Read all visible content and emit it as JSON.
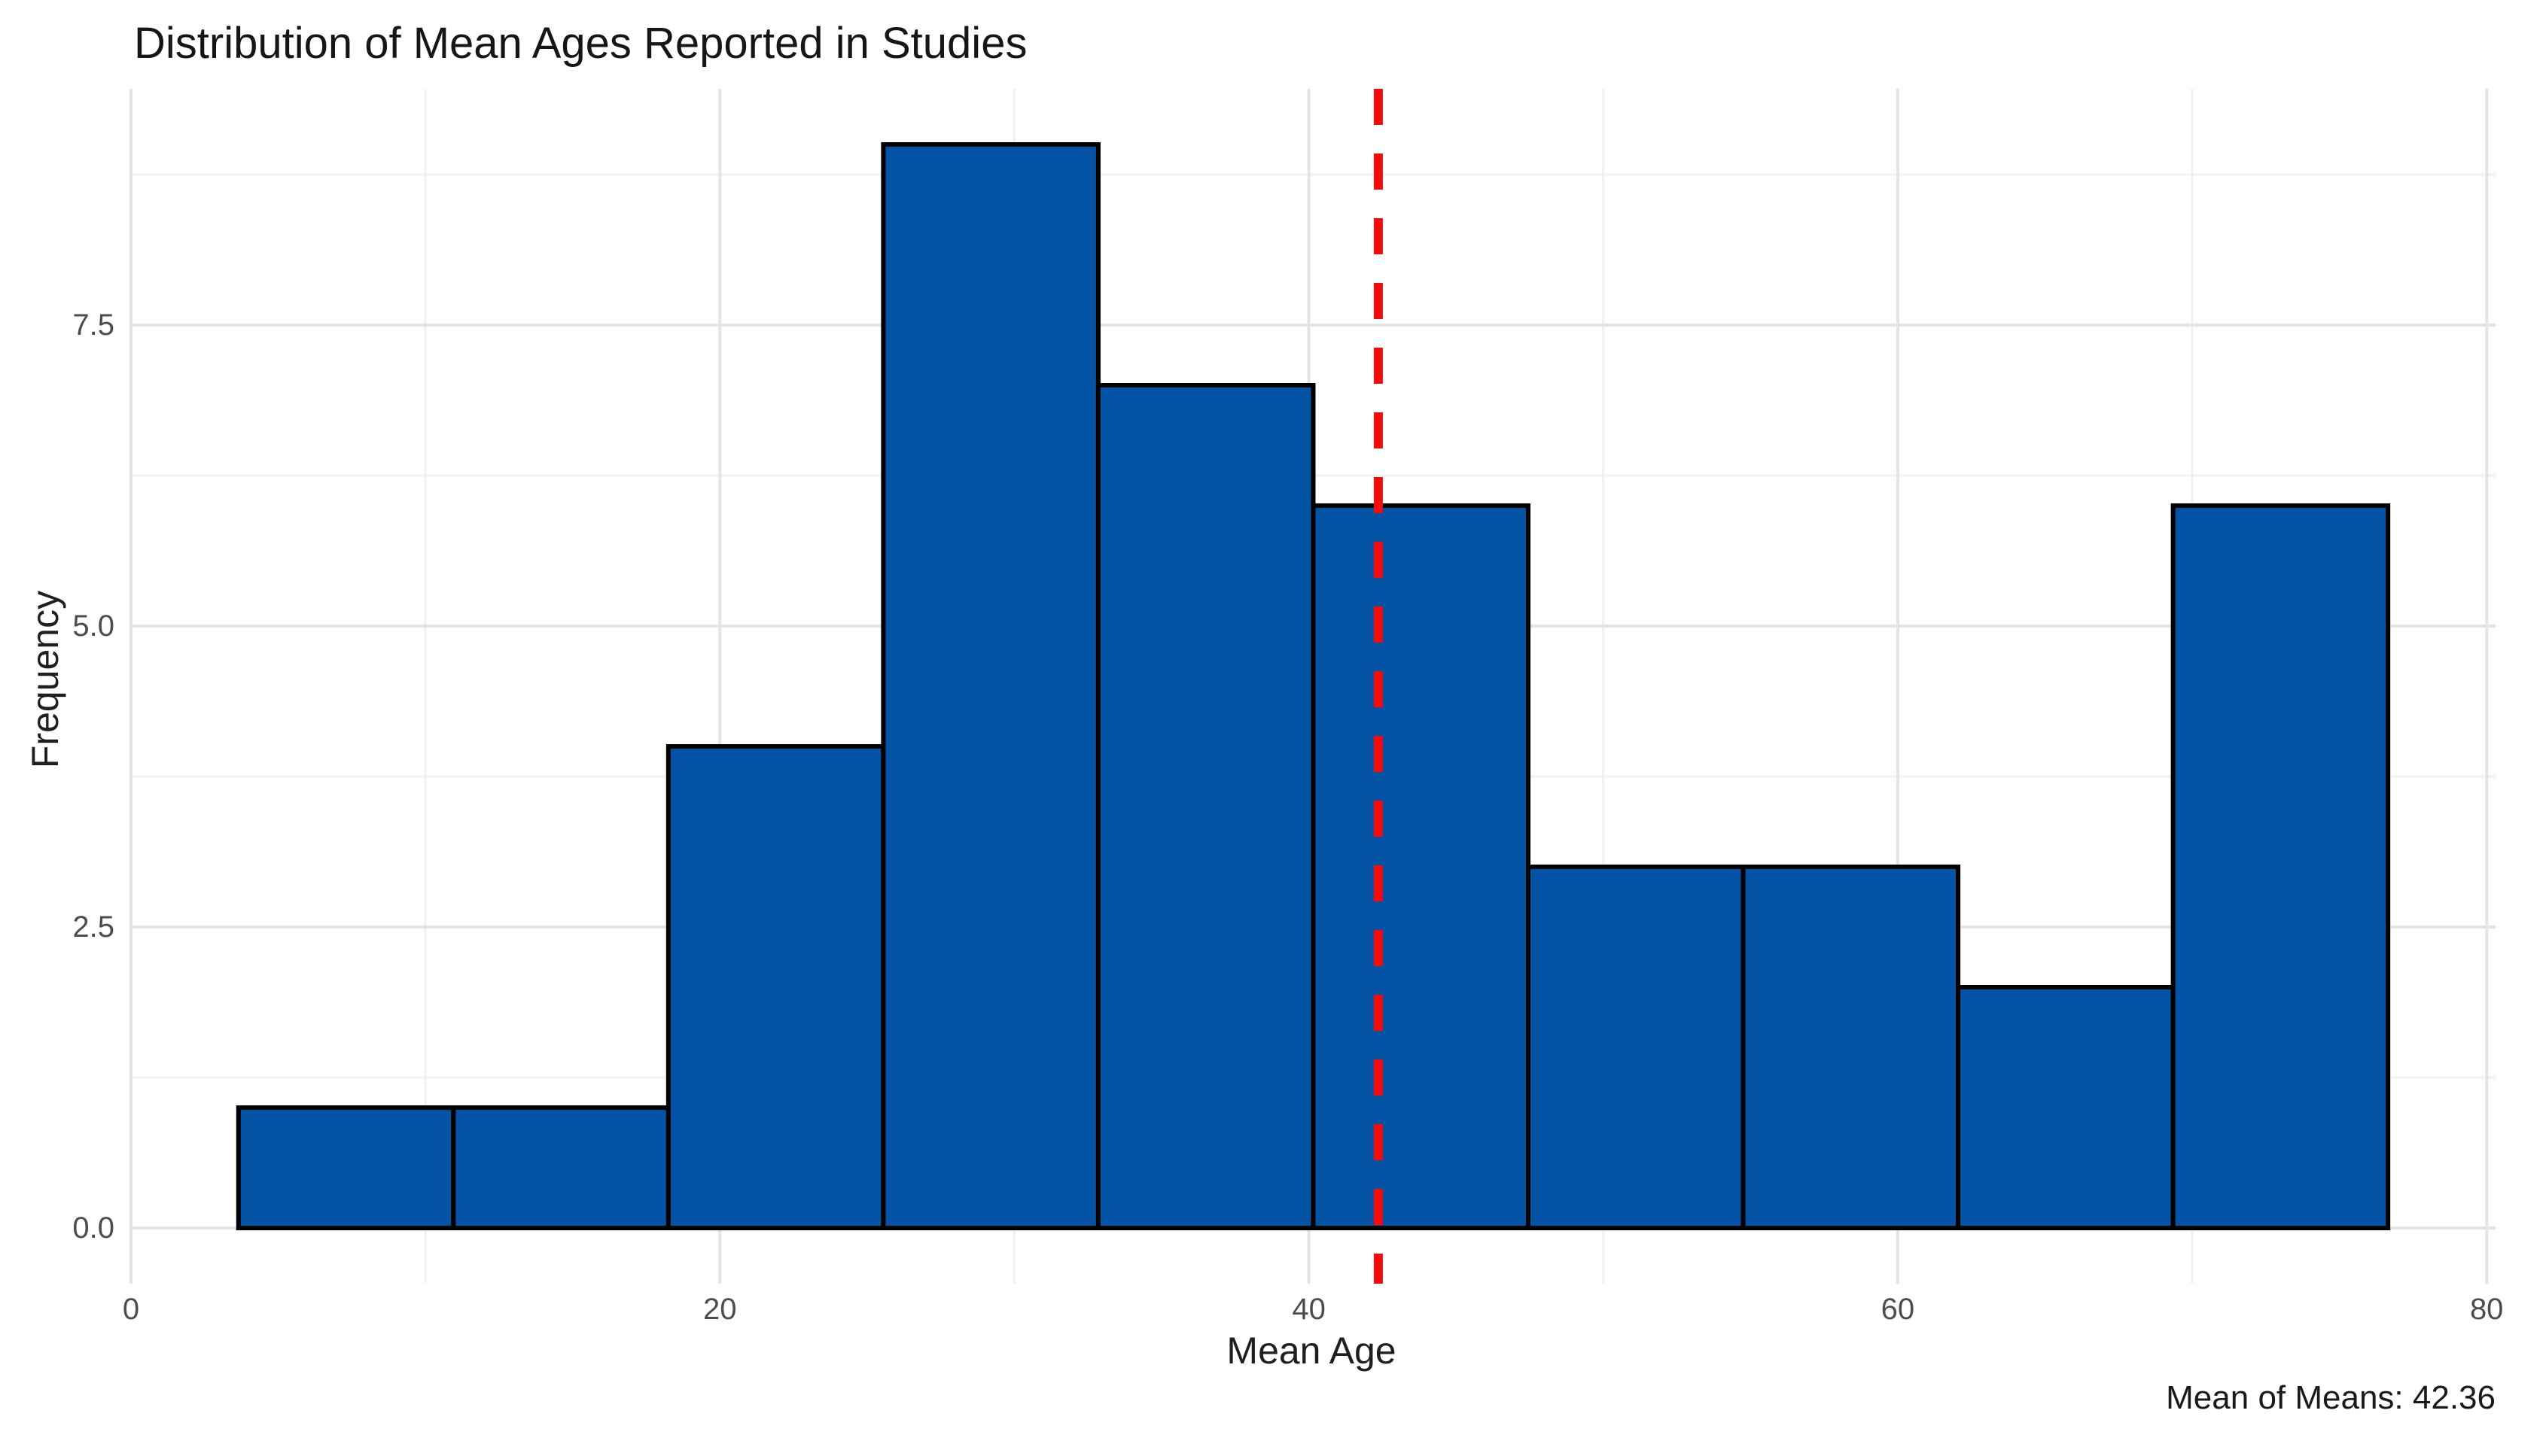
{
  "chart_data": {
    "type": "bar",
    "subtype": "histogram",
    "title": "Distribution of Mean Ages Reported in Studies",
    "xlabel": "Mean Age",
    "ylabel": "Frequency",
    "bins": {
      "start": 3.65,
      "width": 7.3,
      "edges": [
        3.65,
        10.95,
        18.25,
        25.55,
        32.85,
        40.15,
        47.45,
        54.75,
        62.05,
        69.35,
        76.65
      ],
      "counts": [
        1,
        1,
        4,
        9,
        7,
        6,
        3,
        3,
        2,
        6
      ]
    },
    "total_studies": 42,
    "mean_line": {
      "value": 42.36,
      "label": "Mean of Means: 42.36",
      "style": "dashed",
      "color": "#f40b0b"
    },
    "x_axis": {
      "range": [
        0,
        80.3
      ],
      "ticks": [
        {
          "value": 0,
          "label": "0"
        },
        {
          "value": 20,
          "label": "20"
        },
        {
          "value": 40,
          "label": "40"
        },
        {
          "value": 60,
          "label": "60"
        },
        {
          "value": 80,
          "label": "80"
        }
      ],
      "minor_ticks": [
        10,
        30,
        50,
        70
      ]
    },
    "y_axis": {
      "range": [
        -0.47,
        9.45
      ],
      "ticks": [
        {
          "value": 0,
          "label": "0.0"
        },
        {
          "value": 2.5,
          "label": "2.5"
        },
        {
          "value": 5,
          "label": "5.0"
        },
        {
          "value": 7.5,
          "label": "7.5"
        }
      ],
      "minor_ticks": [
        1.25,
        3.75,
        6.25,
        8.75
      ]
    },
    "grid": "on",
    "legend": "none",
    "colors": {
      "bar_fill": "#0553a4",
      "bar_stroke": "#000000",
      "grid_major": "#e4e4e4",
      "grid_minor": "#f1f1f1",
      "background": "#ffffff",
      "tick_text": "#4d4d4d",
      "text": "#1a1a1a"
    }
  }
}
